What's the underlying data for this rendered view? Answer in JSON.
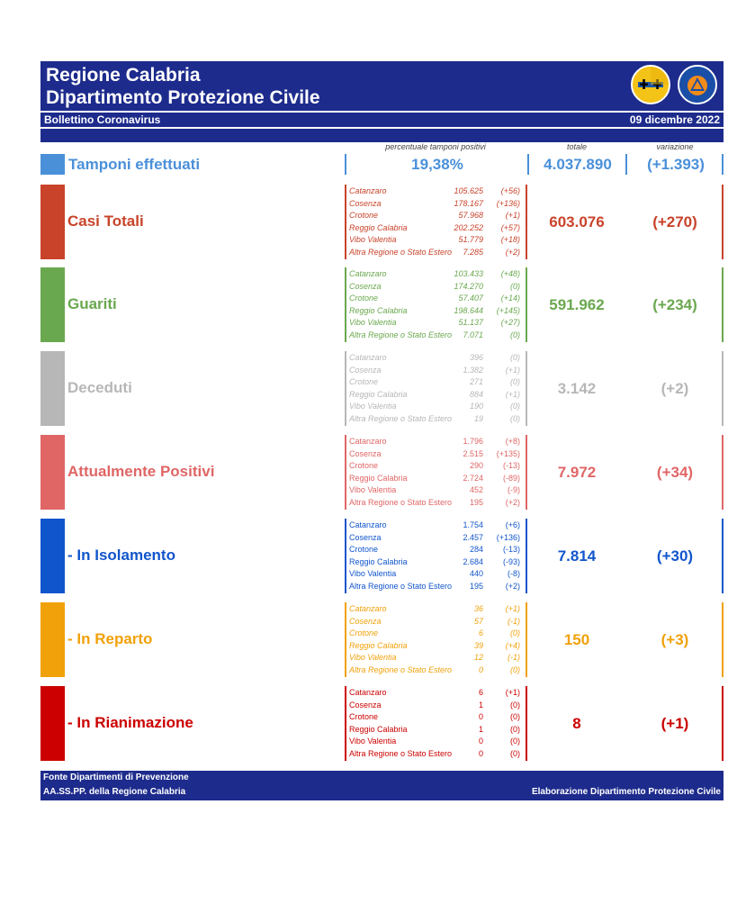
{
  "header": {
    "title_line1": "Regione Calabria",
    "title_line2": "Dipartimento Protezione Civile",
    "subtitle": "Bollettino Coronavirus",
    "date": "09 dicembre 2022"
  },
  "columns": {
    "percent_label": "percentuale tamponi positivi",
    "total_label": "totale",
    "change_label": "variazione"
  },
  "tamponi": {
    "label": "Tamponi effettuati",
    "percent": "19,38%",
    "total": "4.037.890",
    "change": "(+1.393)",
    "color": "#4a90d9"
  },
  "sections": [
    {
      "label": "Casi Totali",
      "total": "603.076",
      "change": "(+270)",
      "color": "#c9432a",
      "rows": [
        {
          "name": "Catanzaro",
          "value": "105.625",
          "delta": "(+56)"
        },
        {
          "name": "Cosenza",
          "value": "178.167",
          "delta": "(+136)"
        },
        {
          "name": "Crotone",
          "value": "57.968",
          "delta": "(+1)"
        },
        {
          "name": "Reggio Calabria",
          "value": "202.252",
          "delta": "(+57)"
        },
        {
          "name": "Vibo Valentia",
          "value": "51.779",
          "delta": "(+18)"
        },
        {
          "name": "Altra Regione o Stato Estero",
          "value": "7.285",
          "delta": "(+2)"
        }
      ]
    },
    {
      "label": "Guariti",
      "total": "591.962",
      "change": "(+234)",
      "color": "#6aa84f",
      "rows": [
        {
          "name": "Catanzaro",
          "value": "103.433",
          "delta": "(+48)"
        },
        {
          "name": "Cosenza",
          "value": "174.270",
          "delta": "(0)"
        },
        {
          "name": "Crotone",
          "value": "57.407",
          "delta": "(+14)"
        },
        {
          "name": "Reggio Calabria",
          "value": "198.644",
          "delta": "(+145)"
        },
        {
          "name": "Vibo Valentia",
          "value": "51.137",
          "delta": "(+27)"
        },
        {
          "name": "Altra Regione o Stato Estero",
          "value": "7.071",
          "delta": "(0)"
        }
      ]
    },
    {
      "label": "Deceduti",
      "total": "3.142",
      "change": "(+2)",
      "color": "#b7b7b7",
      "rows": [
        {
          "name": "Catanzaro",
          "value": "396",
          "delta": "(0)"
        },
        {
          "name": "Cosenza",
          "value": "1.382",
          "delta": "(+1)"
        },
        {
          "name": "Crotone",
          "value": "271",
          "delta": "(0)"
        },
        {
          "name": "Reggio Calabria",
          "value": "884",
          "delta": "(+1)"
        },
        {
          "name": "Vibo Valentia",
          "value": "190",
          "delta": "(0)"
        },
        {
          "name": "Altra Regione o Stato Estero",
          "value": "19",
          "delta": "(0)"
        }
      ]
    },
    {
      "label": "Attualmente Positivi",
      "total": "7.972",
      "change": "(+34)",
      "color": "#e06666",
      "rows": [
        {
          "name": "Catanzaro",
          "value": "1.796",
          "delta": "(+8)"
        },
        {
          "name": "Cosenza",
          "value": "2.515",
          "delta": "(+135)"
        },
        {
          "name": "Crotone",
          "value": "290",
          "delta": "(-13)"
        },
        {
          "name": "Reggio Calabria",
          "value": "2.724",
          "delta": "(-89)"
        },
        {
          "name": "Vibo Valentia",
          "value": "452",
          "delta": "(-9)"
        },
        {
          "name": "Altra Regione o Stato Estero",
          "value": "195",
          "delta": "(+2)"
        }
      ]
    },
    {
      "label": "- In Isolamento",
      "total": "7.814",
      "change": "(+30)",
      "color": "#1155cc",
      "rows": [
        {
          "name": "Catanzaro",
          "value": "1.754",
          "delta": "(+6)"
        },
        {
          "name": "Cosenza",
          "value": "2.457",
          "delta": "(+136)"
        },
        {
          "name": "Crotone",
          "value": "284",
          "delta": "(-13)"
        },
        {
          "name": "Reggio Calabria",
          "value": "2.684",
          "delta": "(-93)"
        },
        {
          "name": "Vibo Valentia",
          "value": "440",
          "delta": "(-8)"
        },
        {
          "name": "Altra Regione o Stato Estero",
          "value": "195",
          "delta": "(+2)"
        }
      ]
    },
    {
      "label": "- In Reparto",
      "total": "150",
      "change": "(+3)",
      "color": "#f1a10a",
      "rows": [
        {
          "name": "Catanzaro",
          "value": "36",
          "delta": "(+1)"
        },
        {
          "name": "Cosenza",
          "value": "57",
          "delta": "(-1)"
        },
        {
          "name": "Crotone",
          "value": "6",
          "delta": "(0)"
        },
        {
          "name": "Reggio Calabria",
          "value": "39",
          "delta": "(+4)"
        },
        {
          "name": "Vibo Valentia",
          "value": "12",
          "delta": "(-1)"
        },
        {
          "name": "Altra Regione o Stato Estero",
          "value": "0",
          "delta": "(0)"
        }
      ]
    },
    {
      "label": "- In Rianimazione",
      "total": "8",
      "change": "(+1)",
      "color": "#cc0000",
      "rows": [
        {
          "name": "Catanzaro",
          "value": "6",
          "delta": "(+1)"
        },
        {
          "name": "Cosenza",
          "value": "1",
          "delta": "(0)"
        },
        {
          "name": "Crotone",
          "value": "0",
          "delta": "(0)"
        },
        {
          "name": "Reggio Calabria",
          "value": "1",
          "delta": "(0)"
        },
        {
          "name": "Vibo Valentia",
          "value": "0",
          "delta": "(0)"
        },
        {
          "name": "Altra Regione o Stato Estero",
          "value": "0",
          "delta": "(0)"
        }
      ]
    }
  ],
  "footer": {
    "source_line1": "Fonte Dipartimenti di Prevenzione",
    "source_line2": "AA.SS.PP.  della Regione Calabria",
    "credit": "Elaborazione Dipartimento Protezione Civile"
  },
  "logos": {
    "region": "calabria-region-emblem-icon",
    "civil_protection": "protezione-civile-logo-icon"
  }
}
